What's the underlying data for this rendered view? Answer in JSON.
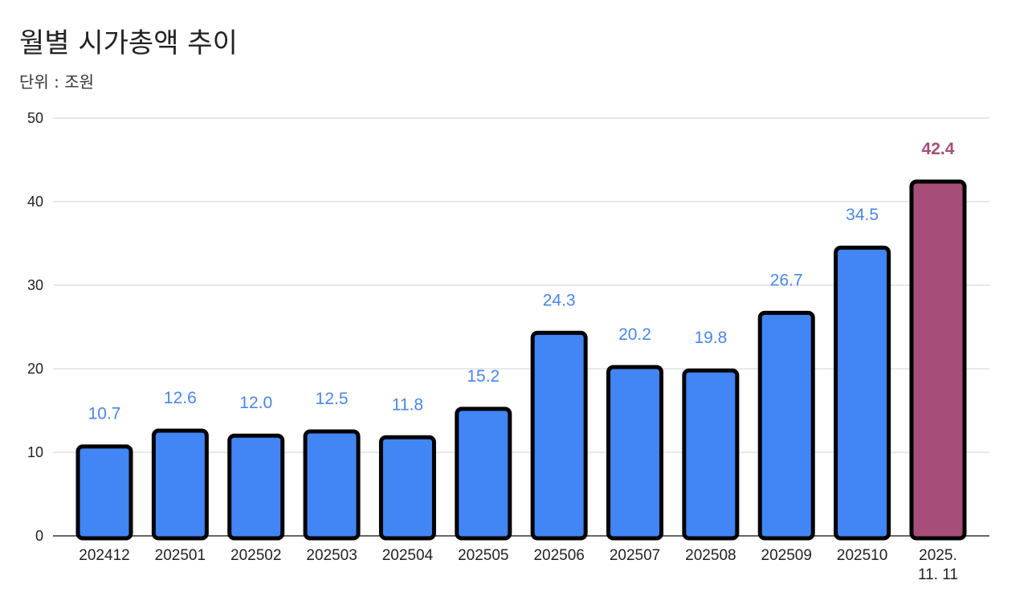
{
  "chart_data": {
    "type": "bar",
    "title": "월별 시가총액 추이",
    "subtitle": "단위 : 조원",
    "categories": [
      "202412",
      "202501",
      "202502",
      "202503",
      "202504",
      "202505",
      "202506",
      "202507",
      "202508",
      "202509",
      "202510",
      "2025. 11. 11"
    ],
    "values": [
      10.7,
      12.6,
      12.0,
      12.5,
      11.8,
      15.2,
      24.3,
      20.2,
      19.8,
      26.7,
      34.5,
      42.4
    ],
    "data_labels": [
      "10.7",
      "12.6",
      "12.0",
      "12.5",
      "11.8",
      "15.2",
      "24.3",
      "20.2",
      "19.8",
      "26.7",
      "34.5",
      "42.4"
    ],
    "yticks": [
      "0",
      "10",
      "20",
      "30",
      "40",
      "50"
    ],
    "ylim": [
      0,
      50
    ],
    "grid": true,
    "highlight_index": 11,
    "colors": {
      "bar": "#4285f4",
      "highlight": "#a64d79",
      "outline": "#000000",
      "label": "#4a86e8",
      "highlight_label": "#a64d79",
      "grid": "#d0d0d0"
    }
  }
}
